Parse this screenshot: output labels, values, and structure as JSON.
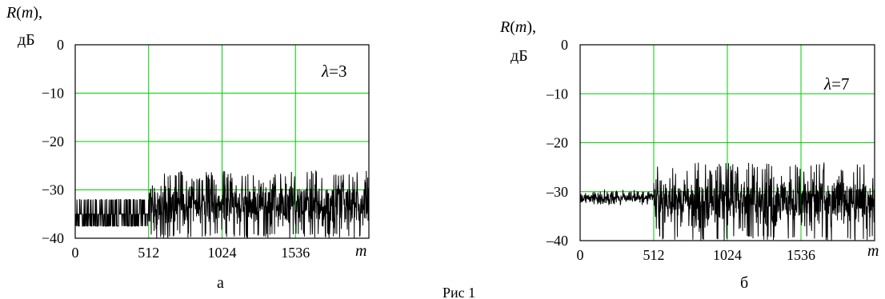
{
  "figure_caption": "Рис 1",
  "chart_data": [
    {
      "type": "line",
      "panel_label": "а",
      "lambda_label": "λ=3",
      "ylabel_line1": "R(m),",
      "ylabel_unit": "дБ",
      "xlabel": "m",
      "xlim": [
        0,
        2048
      ],
      "ylim": [
        -40,
        0
      ],
      "x_ticks": [
        "0",
        "512",
        "1024",
        "1536"
      ],
      "y_ticks": [
        "0",
        "−10",
        "−20",
        "−30",
        "−40"
      ],
      "grid": true,
      "grid_color": "#00cc00",
      "line_color": "#000000",
      "segments": [
        {
          "x_range": [
            0,
            512
          ],
          "y_levels": [
            -32,
            -35,
            -37.5
          ]
        },
        {
          "x_range": [
            512,
            2048
          ],
          "y_min": -40,
          "y_max": -26
        }
      ]
    },
    {
      "type": "line",
      "panel_label": "б",
      "lambda_label": "λ=7",
      "ylabel_line1": "R(m),",
      "ylabel_unit": "дБ",
      "xlabel": "m",
      "xlim": [
        0,
        2048
      ],
      "ylim": [
        -40,
        0
      ],
      "x_ticks": [
        "0",
        "512",
        "1024",
        "1536"
      ],
      "y_ticks": [
        "0",
        "–10",
        "–20",
        "–30",
        "–40"
      ],
      "grid": true,
      "grid_color": "#00cc00",
      "line_color": "#000000",
      "segments": [
        {
          "x_range": [
            0,
            512
          ],
          "y_min": -33,
          "y_max": -29.5
        },
        {
          "x_range": [
            512,
            2048
          ],
          "y_min": -40,
          "y_max": -24
        }
      ]
    }
  ]
}
